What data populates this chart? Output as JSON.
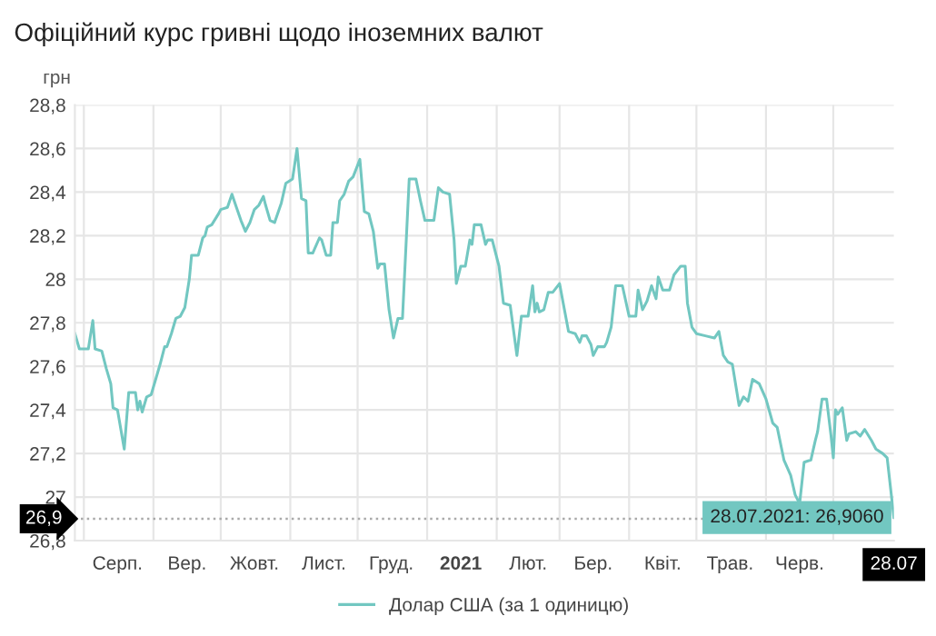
{
  "chart_data": {
    "type": "line",
    "title": "Офіційний курс гривні щодо іноземних валют",
    "ylabel": "грн",
    "x": [
      "2020-07-28",
      "2020-07-30",
      "2020-08-03",
      "2020-08-05",
      "2020-08-06",
      "2020-08-09",
      "2020-08-11",
      "2020-08-13",
      "2020-08-14",
      "2020-08-16",
      "2020-08-19",
      "2020-08-21",
      "2020-08-24",
      "2020-08-25",
      "2020-08-26",
      "2020-08-27",
      "2020-08-29",
      "2020-08-31",
      "2020-09-04",
      "2020-09-06",
      "2020-09-07",
      "2020-09-09",
      "2020-09-11",
      "2020-09-13",
      "2020-09-15",
      "2020-09-17",
      "2020-09-18",
      "2020-09-21",
      "2020-09-23",
      "2020-09-24",
      "2020-09-25",
      "2020-09-27",
      "2020-09-30",
      "2020-10-01",
      "2020-10-04",
      "2020-10-06",
      "2020-10-08",
      "2020-10-10",
      "2020-10-12",
      "2020-10-14",
      "2020-10-16",
      "2020-10-18",
      "2020-10-20",
      "2020-10-21",
      "2020-10-23",
      "2020-10-25",
      "2020-10-28",
      "2020-10-30",
      "2020-11-02",
      "2020-11-04",
      "2020-11-06",
      "2020-11-08",
      "2020-11-09",
      "2020-11-11",
      "2020-11-14",
      "2020-11-15",
      "2020-11-17",
      "2020-11-19",
      "2020-11-20",
      "2020-11-22",
      "2020-11-23",
      "2020-11-25",
      "2020-11-27",
      "2020-11-29",
      "2020-12-02",
      "2020-12-04",
      "2020-12-06",
      "2020-12-08",
      "2020-12-10",
      "2020-12-11",
      "2020-12-13",
      "2020-12-15",
      "2020-12-17",
      "2020-12-19",
      "2020-12-21",
      "2020-12-24",
      "2020-12-27",
      "2020-12-29",
      "2020-12-31",
      "2021-01-04",
      "2021-01-06",
      "2021-01-08",
      "2021-01-11",
      "2021-01-13",
      "2021-01-14",
      "2021-01-16",
      "2021-01-18",
      "2021-01-20",
      "2021-01-21",
      "2021-01-22",
      "2021-01-25",
      "2021-01-27",
      "2021-01-28",
      "2021-01-30",
      "2021-02-02",
      "2021-02-04",
      "2021-02-07",
      "2021-02-10",
      "2021-02-12",
      "2021-02-15",
      "2021-02-17",
      "2021-02-18",
      "2021-02-19",
      "2021-02-20",
      "2021-02-22",
      "2021-02-24",
      "2021-02-26",
      "2021-03-01",
      "2021-03-03",
      "2021-03-05",
      "2021-03-08",
      "2021-03-10",
      "2021-03-11",
      "2021-03-13",
      "2021-03-15",
      "2021-03-16",
      "2021-03-18",
      "2021-03-21",
      "2021-03-22",
      "2021-03-24",
      "2021-03-26",
      "2021-03-29",
      "2021-04-01",
      "2021-04-04",
      "2021-04-05",
      "2021-04-07",
      "2021-04-09",
      "2021-04-11",
      "2021-04-13",
      "2021-04-14",
      "2021-04-16",
      "2021-04-19",
      "2021-04-21",
      "2021-04-24",
      "2021-04-26",
      "2021-04-27",
      "2021-04-29",
      "2021-05-01",
      "2021-05-05",
      "2021-05-09",
      "2021-05-11",
      "2021-05-13",
      "2021-05-15",
      "2021-05-17",
      "2021-05-20",
      "2021-05-22",
      "2021-05-24",
      "2021-05-26",
      "2021-05-29",
      "2021-06-01",
      "2021-06-04",
      "2021-06-06",
      "2021-06-09",
      "2021-06-12",
      "2021-06-14",
      "2021-06-16",
      "2021-06-18",
      "2021-06-21",
      "2021-06-23",
      "2021-06-24",
      "2021-06-26",
      "2021-06-28",
      "2021-06-30",
      "2021-07-01",
      "2021-07-02",
      "2021-07-03",
      "2021-07-05",
      "2021-07-07",
      "2021-07-08",
      "2021-07-11",
      "2021-07-13",
      "2021-07-15",
      "2021-07-18",
      "2021-07-20",
      "2021-07-23",
      "2021-07-25",
      "2021-07-28"
    ],
    "series": [
      {
        "name": "Долар США (за 1 одиницю)",
        "color": "#72c7c1",
        "values": [
          27.75,
          27.68,
          27.68,
          27.81,
          27.68,
          27.67,
          27.59,
          27.52,
          27.41,
          27.4,
          27.22,
          27.48,
          27.48,
          27.4,
          27.44,
          27.39,
          27.46,
          27.47,
          27.61,
          27.69,
          27.69,
          27.75,
          27.82,
          27.83,
          27.87,
          28.0,
          28.11,
          28.11,
          28.19,
          28.2,
          28.24,
          28.25,
          28.3,
          28.32,
          28.33,
          28.39,
          28.33,
          28.27,
          28.22,
          28.26,
          28.32,
          28.34,
          28.38,
          28.34,
          28.27,
          28.26,
          28.35,
          28.44,
          28.46,
          28.6,
          28.37,
          28.36,
          28.12,
          28.12,
          28.19,
          28.18,
          28.11,
          28.11,
          28.26,
          28.26,
          28.36,
          28.39,
          28.45,
          28.47,
          28.55,
          28.31,
          28.3,
          28.22,
          28.05,
          28.07,
          28.07,
          27.86,
          27.73,
          27.82,
          27.82,
          28.46,
          28.46,
          28.36,
          28.27,
          28.27,
          28.42,
          28.4,
          28.39,
          28.18,
          27.98,
          28.06,
          28.06,
          28.18,
          28.16,
          28.25,
          28.25,
          28.16,
          28.18,
          28.18,
          28.06,
          27.89,
          27.88,
          27.65,
          27.83,
          27.83,
          27.97,
          27.85,
          27.89,
          27.85,
          27.86,
          27.94,
          27.94,
          27.98,
          27.87,
          27.76,
          27.75,
          27.71,
          27.74,
          27.74,
          27.7,
          27.65,
          27.69,
          27.69,
          27.71,
          27.78,
          27.97,
          27.97,
          27.83,
          27.83,
          27.95,
          27.86,
          27.9,
          27.97,
          27.91,
          28.01,
          27.95,
          27.95,
          28.02,
          28.06,
          28.06,
          27.89,
          27.78,
          27.75,
          27.74,
          27.73,
          27.76,
          27.65,
          27.62,
          27.61,
          27.42,
          27.46,
          27.44,
          27.54,
          27.52,
          27.45,
          27.34,
          27.32,
          27.17,
          27.1,
          27.01,
          26.97,
          27.16,
          27.17,
          27.26,
          27.3,
          27.45,
          27.45,
          27.28,
          27.18,
          27.4,
          27.38,
          27.41,
          27.26,
          27.29,
          27.3,
          27.28,
          27.31,
          27.26,
          27.22,
          27.2,
          27.18,
          26.906
        ]
      }
    ],
    "xlim": [
      "2020-07-28",
      "2021-07-28"
    ],
    "xticks": [
      {
        "value": "2020-08-01",
        "label": null
      },
      {
        "value": "2020-08-16",
        "label": "Серп."
      },
      {
        "value": "2020-09-01",
        "label": null
      },
      {
        "value": "2020-09-16",
        "label": "Вер."
      },
      {
        "value": "2020-10-01",
        "label": null
      },
      {
        "value": "2020-10-16",
        "label": "Жовт."
      },
      {
        "value": "2020-11-01",
        "label": null
      },
      {
        "value": "2020-11-16",
        "label": "Лист."
      },
      {
        "value": "2020-12-01",
        "label": null
      },
      {
        "value": "2020-12-16",
        "label": "Груд."
      },
      {
        "value": "2021-01-01",
        "label": null
      },
      {
        "value": "2021-01-16",
        "label": "2021"
      },
      {
        "value": "2021-02-01",
        "label": null
      },
      {
        "value": "2021-02-15",
        "label": "Лют."
      },
      {
        "value": "2021-03-01",
        "label": null
      },
      {
        "value": "2021-03-16",
        "label": "Бер."
      },
      {
        "value": "2021-04-01",
        "label": null
      },
      {
        "value": "2021-04-16",
        "label": "Квіт."
      },
      {
        "value": "2021-05-01",
        "label": null
      },
      {
        "value": "2021-05-16",
        "label": "Трав."
      },
      {
        "value": "2021-06-01",
        "label": null
      },
      {
        "value": "2021-06-16",
        "label": "Черв."
      },
      {
        "value": "2021-07-01",
        "label": null
      },
      {
        "value": "2021-07-28",
        "label": "28.07"
      }
    ],
    "ylim": [
      26.8,
      28.8
    ],
    "yticks": [
      {
        "value": 26.8,
        "label": "26,8"
      },
      {
        "value": 27,
        "label": "27"
      },
      {
        "value": 27.2,
        "label": "27,2"
      },
      {
        "value": 27.4,
        "label": "27,4"
      },
      {
        "value": 27.6,
        "label": "27,6"
      },
      {
        "value": 27.8,
        "label": "27,8"
      },
      {
        "value": 28,
        "label": "28"
      },
      {
        "value": 28.2,
        "label": "28,2"
      },
      {
        "value": 28.4,
        "label": "28,4"
      },
      {
        "value": 28.6,
        "label": "28,6"
      },
      {
        "value": 28.8,
        "label": "28,8"
      }
    ],
    "ref_lines": [
      {
        "axis": "y",
        "value": 26.9,
        "label": "26,9",
        "color": "#aaaaaa",
        "line_style": "dotted"
      }
    ],
    "annotations": [
      {
        "text": "28.07.2021: 26,9060",
        "x": "2021-07-28",
        "y": 26.906
      }
    ],
    "grid": true,
    "legend": "bottom",
    "marker": "none",
    "line_style": "solid"
  }
}
